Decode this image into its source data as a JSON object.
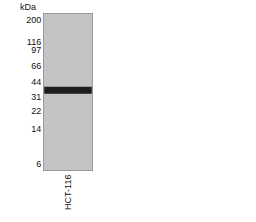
{
  "chart_data": {
    "type": "blot",
    "y_label": "kDa",
    "categories": [
      "HCT-116"
    ],
    "values": [
      36
    ],
    "ylim": [
      5.2,
      230
    ],
    "yticks": [
      200,
      116,
      97,
      66,
      44,
      31,
      22,
      14,
      6
    ],
    "log": "y",
    "grid": false,
    "color": "#1e1e1e"
  }
}
